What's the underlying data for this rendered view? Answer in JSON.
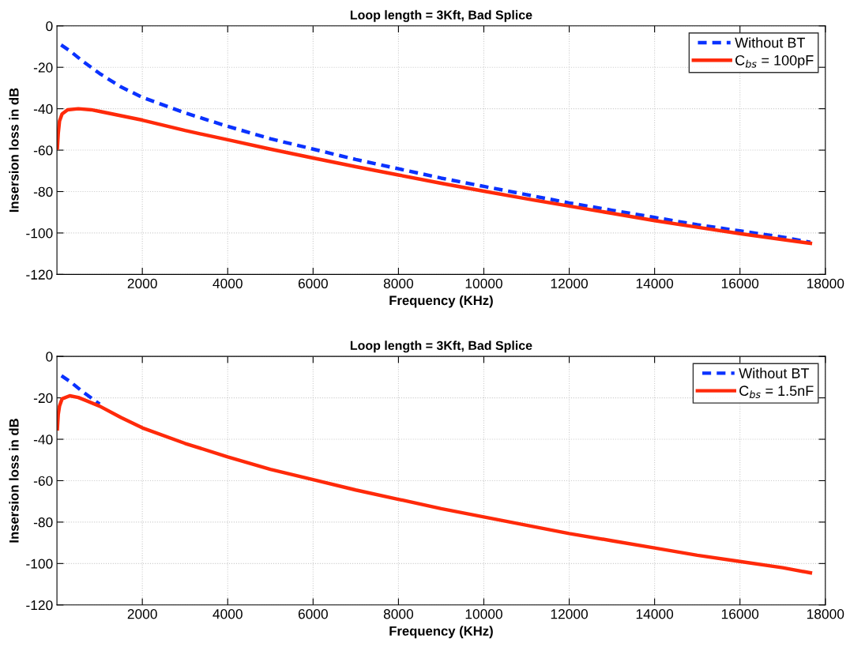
{
  "chart_data": [
    {
      "type": "line",
      "title": "Loop length = 3Kft, Bad Splice",
      "xlabel": "Frequency (KHz)",
      "ylabel": "Insersion loss in dB",
      "xlim": [
        0,
        18000
      ],
      "xticks": [
        2000,
        4000,
        6000,
        8000,
        10000,
        12000,
        14000,
        16000,
        18000
      ],
      "ylim": [
        -120,
        0
      ],
      "yticks": [
        -120,
        -100,
        -80,
        -60,
        -40,
        -20,
        0
      ],
      "grid": true,
      "legend": "top right",
      "series": [
        {
          "name": "Without BT",
          "color": "#0a32ff",
          "line_style": "dashed",
          "x": [
            10,
            300,
            600,
            1000,
            1500,
            2000,
            3000,
            4000,
            5000,
            6000,
            7000,
            8000,
            9000,
            10000,
            11000,
            12000,
            13000,
            14000,
            15000,
            16000,
            17000,
            17650
          ],
          "values": [
            -8,
            -12,
            -17,
            -23,
            -29.5,
            -34.5,
            -42,
            -48.5,
            -54.5,
            -59.5,
            -64.5,
            -69,
            -73.5,
            -77.5,
            -81.5,
            -85.5,
            -89,
            -92.5,
            -96,
            -99,
            -102,
            -104.5
          ]
        },
        {
          "name": "C$_{bs}$ = 100pF",
          "color": "#ff2a0a",
          "line_style": "solid",
          "x": [
            10,
            30,
            60,
            120,
            250,
            500,
            800,
            1000,
            2000,
            3000,
            4000,
            5000,
            6000,
            7000,
            8000,
            9000,
            10000,
            11000,
            12000,
            13000,
            14000,
            15000,
            16000,
            17000,
            17650
          ],
          "values": [
            -59,
            -52,
            -46,
            -42.5,
            -40.5,
            -40,
            -40.5,
            -41.3,
            -45.5,
            -50.5,
            -55,
            -59.5,
            -63.8,
            -68,
            -72,
            -76,
            -79.8,
            -83.5,
            -87,
            -90.5,
            -94,
            -97.2,
            -100.3,
            -103.2,
            -105
          ]
        }
      ]
    },
    {
      "type": "line",
      "title": "Loop length = 3Kft, Bad Splice",
      "xlabel": "Frequency (KHz)",
      "ylabel": "Insersion loss in dB",
      "xlim": [
        0,
        18000
      ],
      "xticks": [
        2000,
        4000,
        6000,
        8000,
        10000,
        12000,
        14000,
        16000,
        18000
      ],
      "ylim": [
        -120,
        0
      ],
      "yticks": [
        -120,
        -100,
        -80,
        -60,
        -40,
        -20,
        0
      ],
      "grid": true,
      "legend": "top right",
      "series": [
        {
          "name": "Without BT",
          "color": "#0a32ff",
          "line_style": "dashed",
          "x": [
            10,
            300,
            600,
            1000
          ],
          "values": [
            -8,
            -12,
            -17,
            -23
          ]
        },
        {
          "name": "C$_{bs}$ = 1.5nF",
          "color": "#ff2a0a",
          "line_style": "solid",
          "x": [
            10,
            30,
            60,
            120,
            300,
            500,
            1000,
            1500,
            2000,
            3000,
            4000,
            5000,
            6000,
            7000,
            8000,
            9000,
            10000,
            11000,
            12000,
            13000,
            14000,
            15000,
            16000,
            17000,
            17650
          ],
          "values": [
            -35,
            -28,
            -24,
            -20.5,
            -19,
            -19.8,
            -24,
            -29.5,
            -34.5,
            -42,
            -48.5,
            -54.5,
            -59.5,
            -64.5,
            -69,
            -73.5,
            -77.5,
            -81.5,
            -85.5,
            -89,
            -92.5,
            -96,
            -99,
            -102,
            -104.5
          ]
        }
      ]
    }
  ]
}
